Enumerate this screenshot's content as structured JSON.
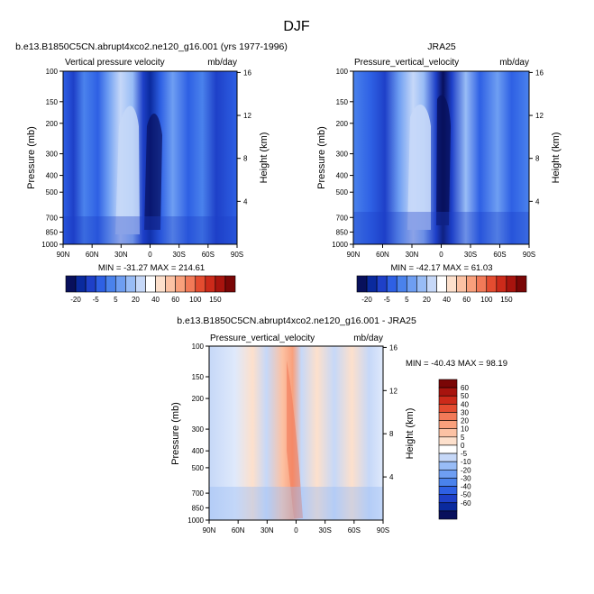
{
  "title": "DJF",
  "colors": {
    "palette_tl": [
      "#08105c",
      "#0a2a9e",
      "#1e40c8",
      "#2e60e4",
      "#4a82ec",
      "#6e9ef2",
      "#98bcf6",
      "#c6d8f8",
      "#ffffff",
      "#fde0cc",
      "#fcc2a4",
      "#f9a07c",
      "#f27a58",
      "#e44c30",
      "#cc2a1a",
      "#a8140e",
      "#7a0606"
    ],
    "palette_diff": [
      "#7a0606",
      "#a8140e",
      "#cc2a1a",
      "#e44c30",
      "#f27a58",
      "#f9a07c",
      "#fcc2a4",
      "#fde0cc",
      "#ffffff",
      "#c6d8f8",
      "#98bcf6",
      "#6e9ef2",
      "#4a82ec",
      "#2e60e4",
      "#1e40c8",
      "#0a2a9e",
      "#08105c"
    ]
  },
  "chart_data": [
    {
      "type": "heatmap",
      "title": "b.e13.B1850C5CN.abrupt4xco2.ne120_g16.001 (yrs 1977-1996)",
      "left_label": "Vertical pressure velocity",
      "right_label": "mb/day",
      "ylabel": "Pressure (mb)",
      "y2label": "Height (km)",
      "x_ticks": [
        "90N",
        "60N",
        "30N",
        "0",
        "30S",
        "60S",
        "90S"
      ],
      "y_ticks": [
        "100",
        "150",
        "200",
        "300",
        "400",
        "500",
        "700",
        "850",
        "1000"
      ],
      "y2_ticks": [
        "16",
        "12",
        "8",
        "4"
      ],
      "stats": "MIN = -31.27  MAX = 214.61",
      "colorbar": [
        "-20",
        "-5",
        "5",
        "20",
        "40",
        "60",
        "100",
        "150"
      ]
    },
    {
      "type": "heatmap",
      "title": "JRA25",
      "left_label": "Pressure_vertical_velocity",
      "right_label": "mb/day",
      "ylabel": "Pressure (mb)",
      "y2label": "Height (km)",
      "x_ticks": [
        "90N",
        "60N",
        "30N",
        "0",
        "30S",
        "60S",
        "90S"
      ],
      "y_ticks": [
        "100",
        "150",
        "200",
        "300",
        "400",
        "500",
        "700",
        "850",
        "1000"
      ],
      "y2_ticks": [
        "16",
        "12",
        "8",
        "4"
      ],
      "stats": "MIN = -42.17  MAX =  61.03",
      "colorbar": [
        "-20",
        "-5",
        "5",
        "20",
        "40",
        "60",
        "100",
        "150"
      ]
    },
    {
      "type": "heatmap",
      "title": "b.e13.B1850C5CN.abrupt4xco2.ne120_g16.001 - JRA25",
      "left_label": "Pressure_vertical_velocity",
      "right_label": "mb/day",
      "ylabel": "Pressure (mb)",
      "y2label": "Height (km)",
      "x_ticks": [
        "90N",
        "60N",
        "30N",
        "0",
        "30S",
        "60S",
        "90S"
      ],
      "y_ticks": [
        "100",
        "150",
        "200",
        "300",
        "400",
        "500",
        "700",
        "850",
        "1000"
      ],
      "y2_ticks": [
        "16",
        "12",
        "8",
        "4"
      ],
      "stats": "MIN = -40.43  MAX =  98.19",
      "colorbar": [
        "60",
        "50",
        "40",
        "30",
        "20",
        "10",
        "5",
        "0",
        "-5",
        "-10",
        "-20",
        "-30",
        "-40",
        "-50",
        "-60"
      ]
    }
  ]
}
